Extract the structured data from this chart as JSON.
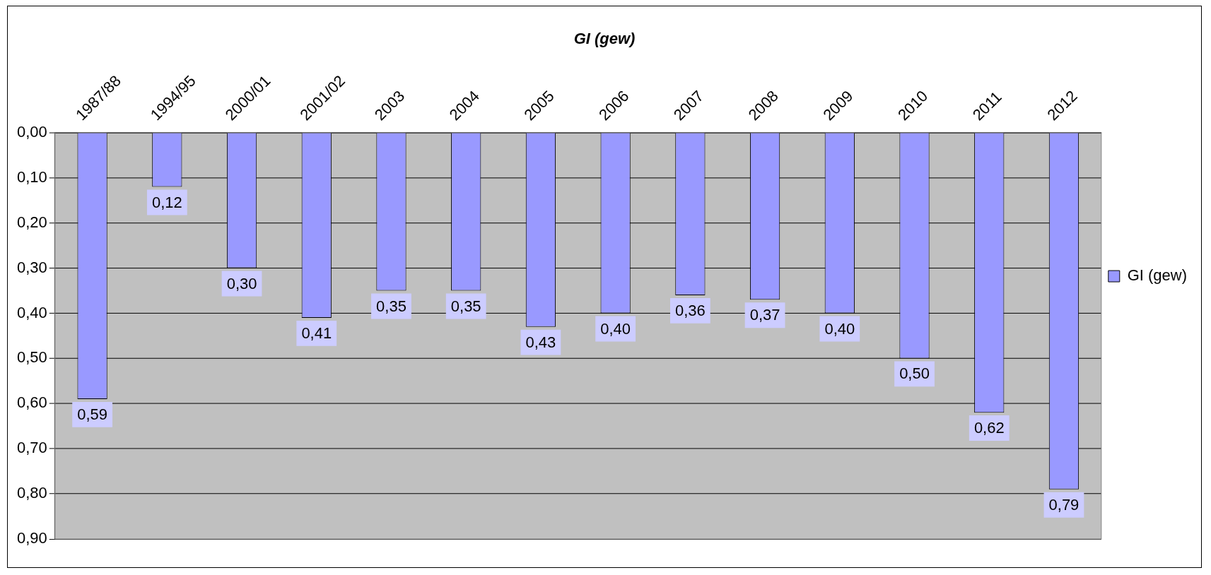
{
  "chart_data": {
    "type": "bar",
    "title": "GI (gew)",
    "categories": [
      "1987/88",
      "1994/95",
      "2000/01",
      "2001/02",
      "2003",
      "2004",
      "2005",
      "2006",
      "2007",
      "2008",
      "2009",
      "2010",
      "2011",
      "2012"
    ],
    "series": [
      {
        "name": "GI (gew)",
        "color": "#9999ff",
        "values": [
          0.59,
          0.12,
          0.3,
          0.41,
          0.35,
          0.35,
          0.43,
          0.4,
          0.36,
          0.37,
          0.4,
          0.5,
          0.62,
          0.79
        ],
        "value_labels": [
          "0,59",
          "0,12",
          "0,30",
          "0,41",
          "0,35",
          "0,35",
          "0,43",
          "0,40",
          "0,36",
          "0,37",
          "0,40",
          "0,50",
          "0,62",
          "0,79"
        ]
      }
    ],
    "ylim": [
      0.9,
      0
    ],
    "yticks": [
      {
        "value": 0,
        "label": "0,00"
      },
      {
        "value": 0.1,
        "label": "0,10"
      },
      {
        "value": 0.2,
        "label": "0,20"
      },
      {
        "value": 0.3,
        "label": "0,30"
      },
      {
        "value": 0.4,
        "label": "0,40"
      },
      {
        "value": 0.5,
        "label": "0,50"
      },
      {
        "value": 0.6,
        "label": "0,60"
      },
      {
        "value": 0.7,
        "label": "0,70"
      },
      {
        "value": 0.8,
        "label": "0,80"
      },
      {
        "value": 0.9,
        "label": "0,90"
      }
    ],
    "grid": "y",
    "legend": "right"
  }
}
